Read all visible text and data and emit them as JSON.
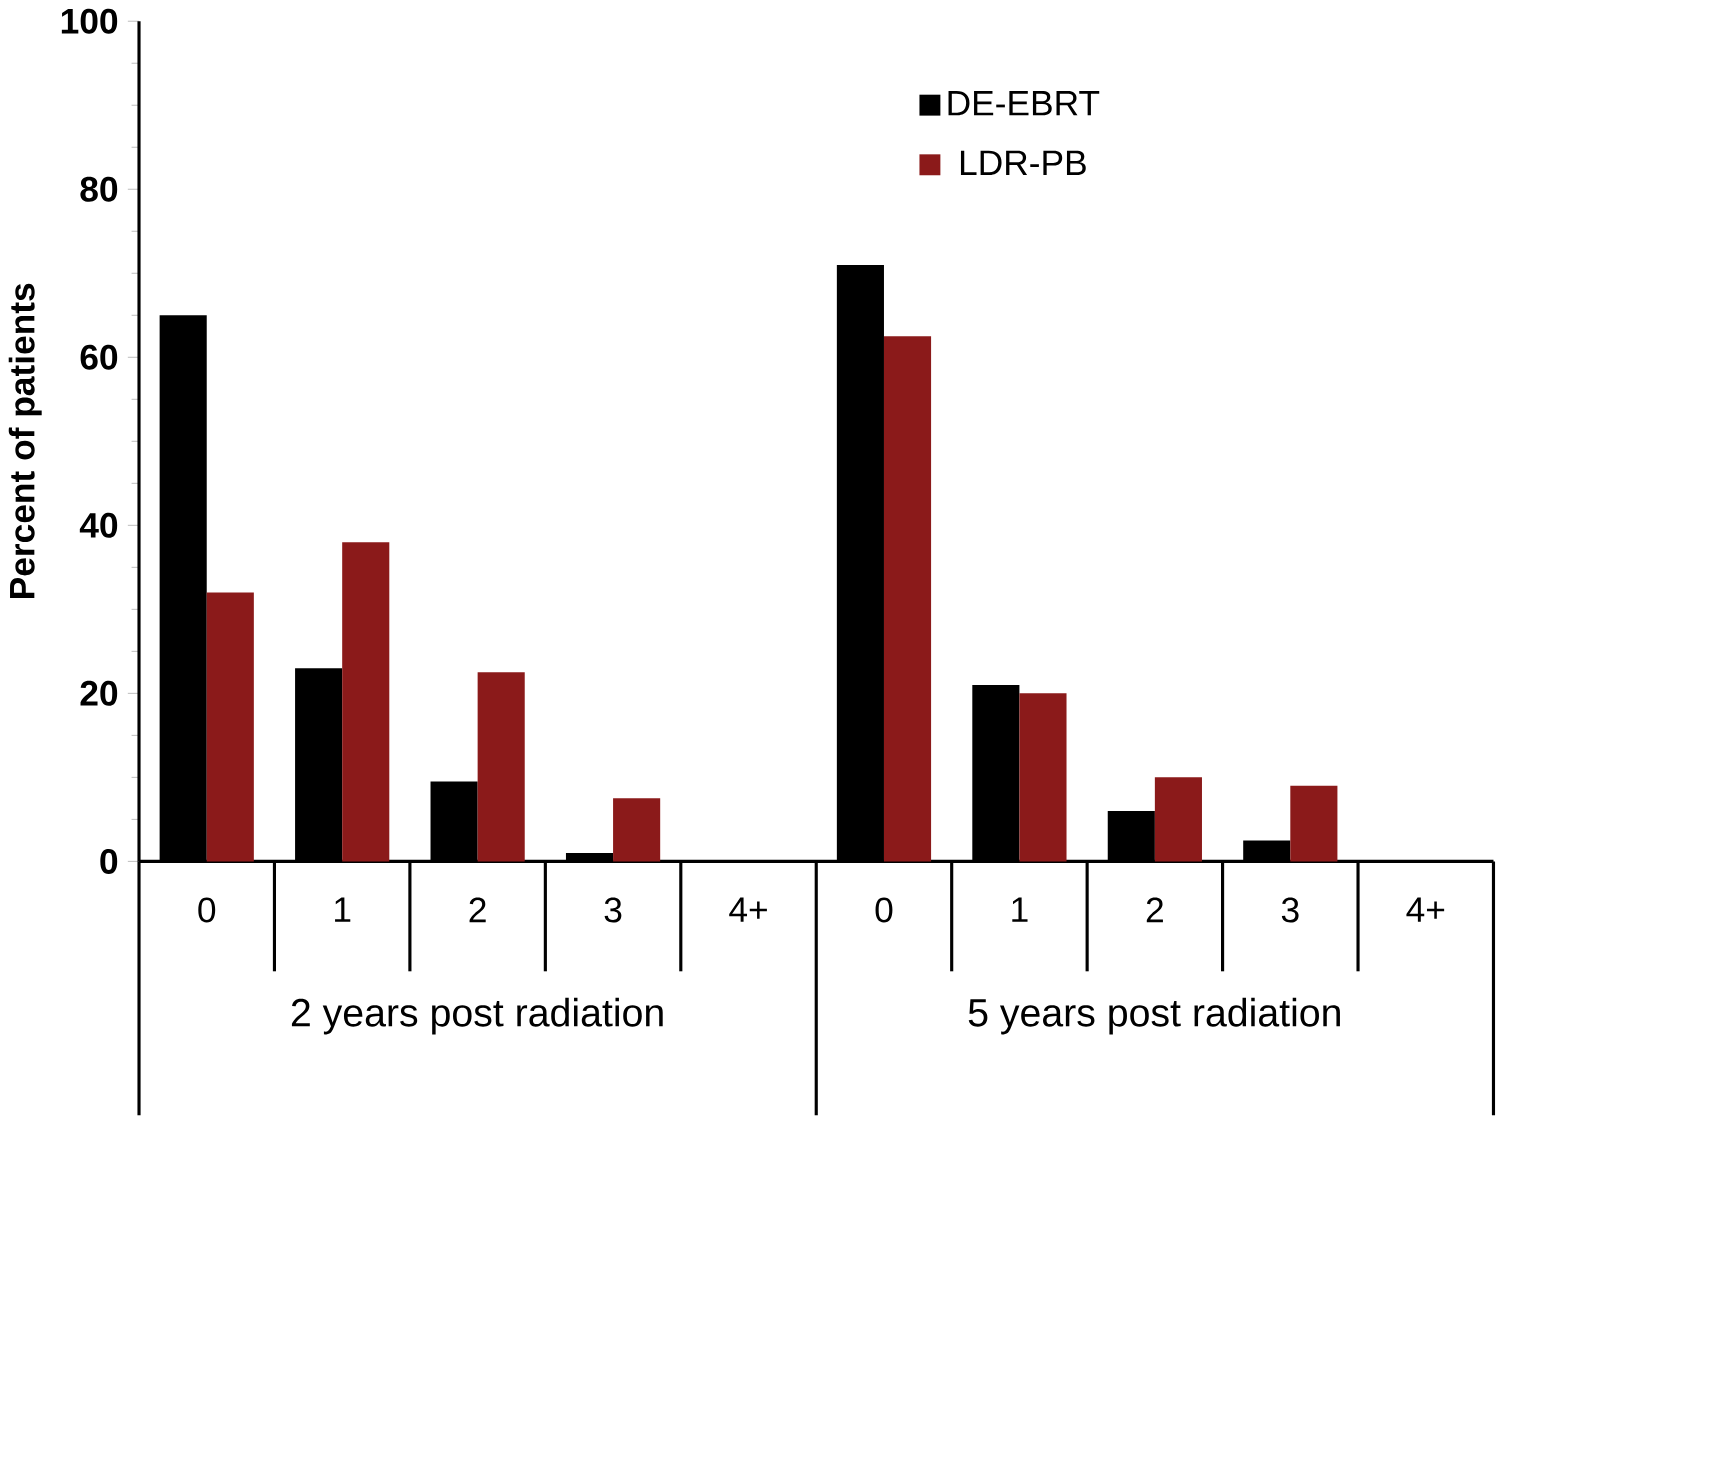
{
  "chart_data": {
    "type": "bar",
    "ylabel": "Percent of patients",
    "categories": [
      "0",
      "1",
      "2",
      "3",
      "4+",
      "0",
      "1",
      "2",
      "3",
      "4+"
    ],
    "series": [
      {
        "name": "DE-EBRT",
        "color": "#000000",
        "values": [
          65,
          23,
          9.5,
          1,
          0,
          71,
          21,
          6,
          2.5,
          0
        ]
      },
      {
        "name": "LDR-PB",
        "color": "#8b1a1a",
        "values": [
          32,
          38,
          22.5,
          7.5,
          0,
          62.5,
          20,
          10,
          9,
          0
        ]
      }
    ],
    "ylim": [
      0,
      100
    ],
    "yticks": [
      0,
      20,
      40,
      60,
      80,
      100
    ],
    "legend": "top right",
    "annotations": [
      "2 years post radiation",
      "5 years post radiation"
    ]
  }
}
